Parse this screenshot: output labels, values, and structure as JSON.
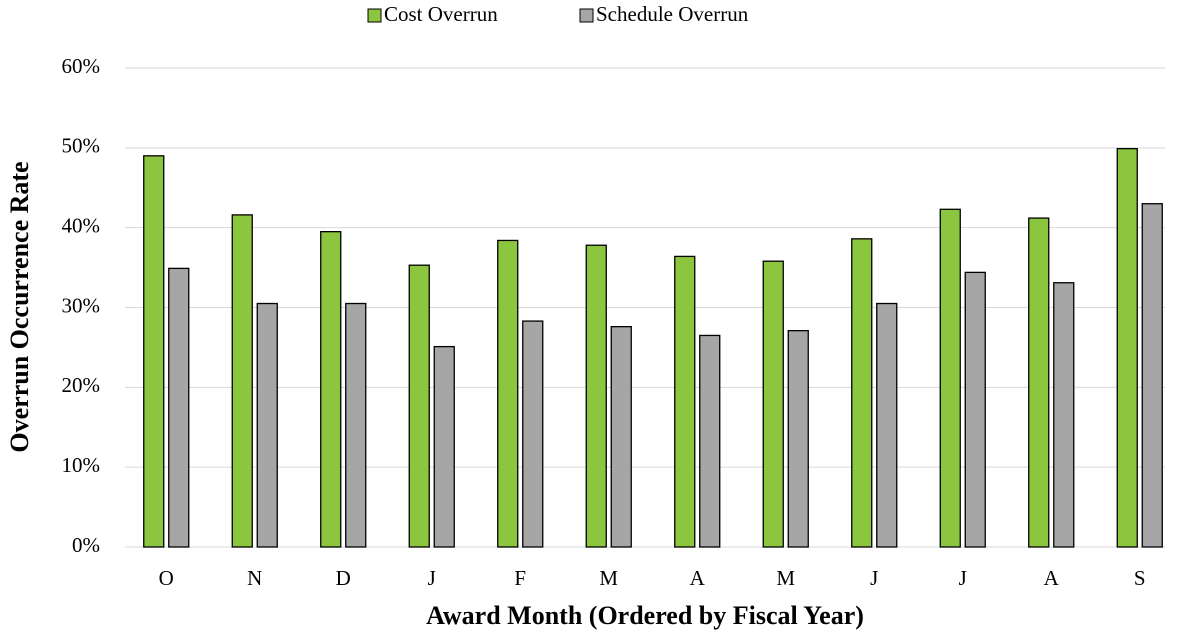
{
  "chart_data": {
    "type": "bar",
    "categories": [
      "O",
      "N",
      "D",
      "J",
      "F",
      "M",
      "A",
      "M",
      "J",
      "J",
      "A",
      "S"
    ],
    "series": [
      {
        "name": "Cost Overrun",
        "color": "#8cc63f",
        "values": [
          49.0,
          41.6,
          39.5,
          35.3,
          38.4,
          37.8,
          36.4,
          35.8,
          38.6,
          42.3,
          41.2,
          49.9
        ]
      },
      {
        "name": "Schedule Overrun",
        "color": "#a6a6a6",
        "values": [
          34.9,
          30.5,
          30.5,
          25.1,
          28.3,
          27.6,
          26.5,
          27.1,
          30.5,
          34.4,
          33.1,
          43.0
        ]
      }
    ],
    "ylabel": "Overrun Occurrence Rate",
    "xlabel": "Award Month (Ordered by Fiscal Year)",
    "ylim": [
      0,
      60
    ],
    "yticks": [
      {
        "value": 0,
        "label": "0%"
      },
      {
        "value": 10,
        "label": "10%"
      },
      {
        "value": 20,
        "label": "20%"
      },
      {
        "value": 30,
        "label": "30%"
      },
      {
        "value": 40,
        "label": "40%"
      },
      {
        "value": 50,
        "label": "50%"
      },
      {
        "value": 60,
        "label": "60%"
      }
    ],
    "grid": true,
    "legend": "top"
  }
}
